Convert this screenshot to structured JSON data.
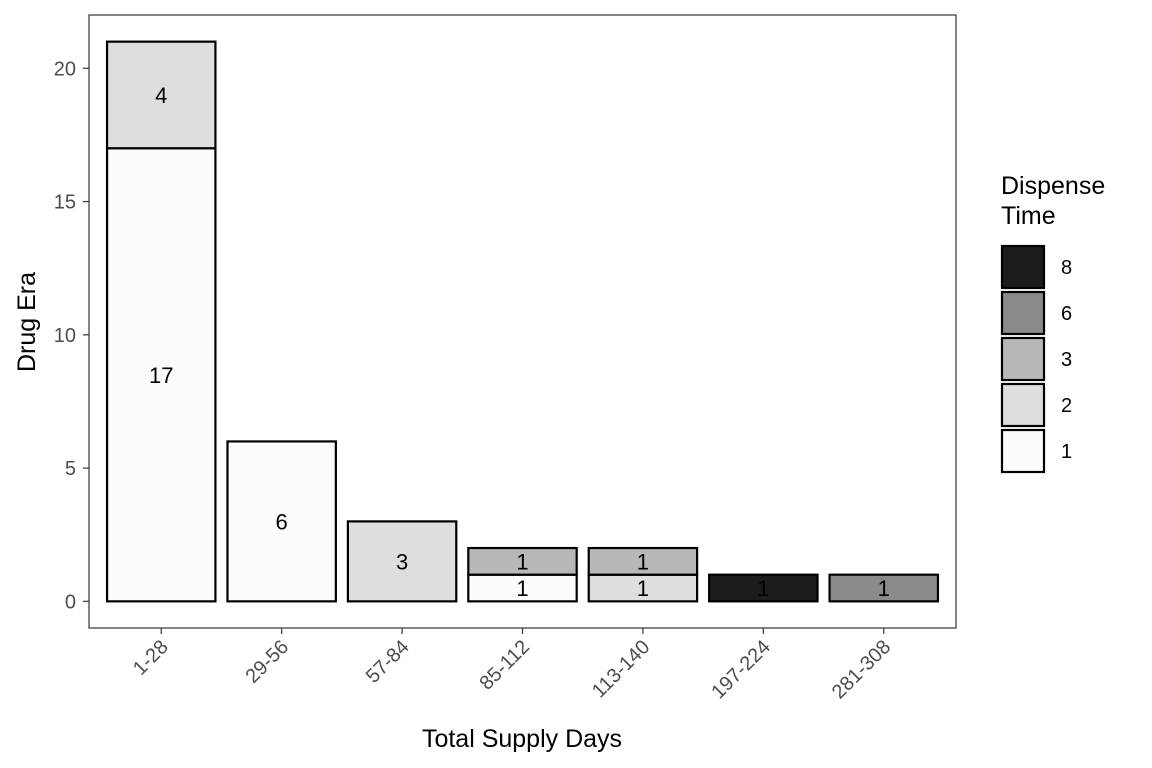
{
  "chart_data": {
    "type": "bar",
    "stacked": true,
    "xlabel": "Total Supply Days",
    "ylabel": "Drug Era",
    "ylim": [
      -1,
      22
    ],
    "yticks": [
      0,
      5,
      10,
      15,
      20
    ],
    "categories": [
      "1-28",
      "29-56",
      "57-84",
      "85-112",
      "113-140",
      "197-224",
      "281-308"
    ],
    "legend": {
      "title": [
        "Dispense",
        "Time"
      ],
      "position": "right",
      "order": [
        "8",
        "6",
        "3",
        "2",
        "1"
      ]
    },
    "colors": {
      "1": "#fcfcfc",
      "2": "#dedede",
      "3": "#b8b8b8",
      "6": "#8a8a8a",
      "8": "#1c1c1c"
    },
    "series": [
      {
        "name": "1",
        "values": [
          17,
          6,
          0,
          1,
          0,
          0,
          0
        ]
      },
      {
        "name": "2",
        "values": [
          4,
          0,
          3,
          0,
          1,
          0,
          0
        ]
      },
      {
        "name": "3",
        "values": [
          0,
          0,
          0,
          1,
          1,
          0,
          0
        ]
      },
      {
        "name": "6",
        "values": [
          0,
          0,
          0,
          0,
          0,
          0,
          1
        ]
      },
      {
        "name": "8",
        "values": [
          0,
          0,
          0,
          0,
          0,
          1,
          0
        ]
      }
    ],
    "grid": false
  }
}
